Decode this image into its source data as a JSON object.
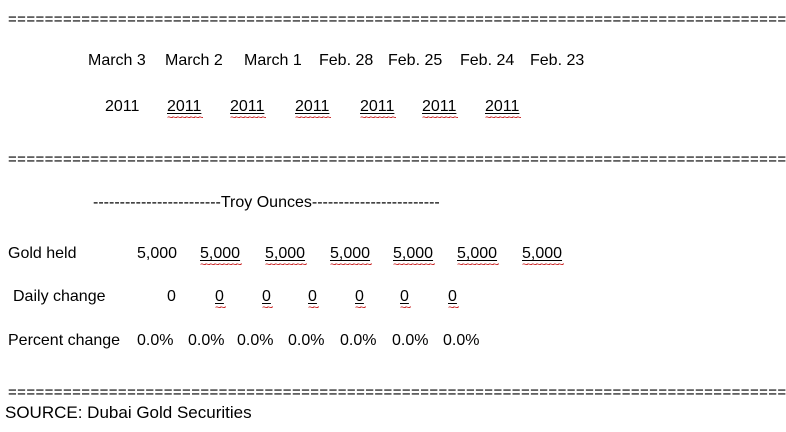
{
  "dividers": {
    "line": "========================================================================================================================"
  },
  "header": {
    "dates": [
      "March 3",
      "March 2",
      "March 1",
      "Feb. 28",
      "Feb. 25",
      "Feb. 24",
      "Feb. 23"
    ],
    "years": [
      "2011",
      "2011",
      "2011",
      "2011",
      "2011",
      "2011",
      "2011"
    ]
  },
  "unit_line": "------------------------Troy Ounces------------------------",
  "table": {
    "rows": [
      {
        "label": "Gold held",
        "values": [
          "5,000",
          "5,000",
          "5,000",
          "5,000",
          "5,000",
          "5,000",
          "5,000"
        ]
      },
      {
        "label": "Daily change",
        "values": [
          "0",
          "0",
          "0",
          "0",
          "0",
          "0",
          "0"
        ]
      },
      {
        "label": "Percent change",
        "values": [
          "0.0%",
          "0.0%",
          "0.0%",
          "0.0%",
          "0.0%",
          "0.0%",
          "0.0%"
        ]
      }
    ]
  },
  "source_line": "SOURCE: Dubai Gold Securities",
  "colors": {
    "text": "#000000",
    "background": "#ffffff",
    "spellcheck_squiggle": "#c00000"
  }
}
